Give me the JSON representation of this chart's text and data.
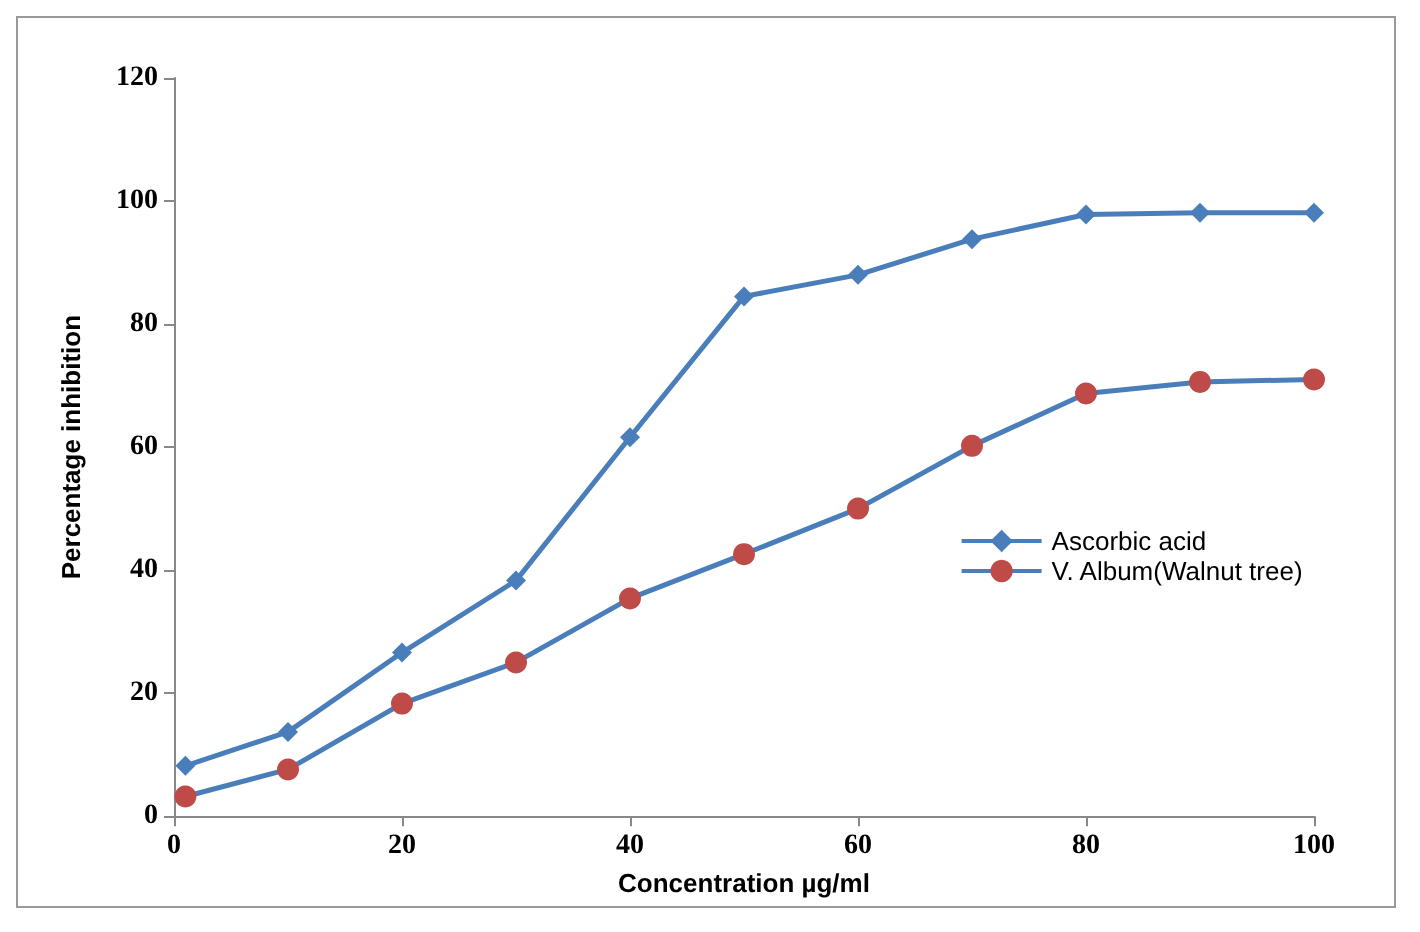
{
  "chart_data": {
    "type": "line",
    "xlabel": "Concentration µg/ml",
    "ylabel": "Percentage inhibition",
    "x": [
      1,
      10,
      20,
      30,
      40,
      50,
      60,
      70,
      80,
      90,
      100
    ],
    "series": [
      {
        "name": "Ascorbic acid",
        "color": "#4a7ebb",
        "marker": "diamond",
        "values": [
          8.2,
          13.7,
          26.6,
          38.3,
          61.6,
          84.5,
          88,
          93.8,
          97.8,
          98.1,
          98.1
        ]
      },
      {
        "name": "V. Album(Walnut tree)",
        "color": "#be4b48",
        "marker": "circle",
        "values": [
          3.2,
          7.6,
          18.3,
          25,
          35.4,
          42.6,
          50,
          60.2,
          68.7,
          70.6,
          71
        ]
      }
    ],
    "xlim": [
      0,
      100
    ],
    "xticks": [
      0,
      20,
      40,
      60,
      80,
      100
    ],
    "ylim": [
      0,
      120
    ],
    "yticks": [
      0,
      20,
      40,
      60,
      80,
      100,
      120
    ],
    "grid": false,
    "legend": "right",
    "line_style": "solid"
  }
}
